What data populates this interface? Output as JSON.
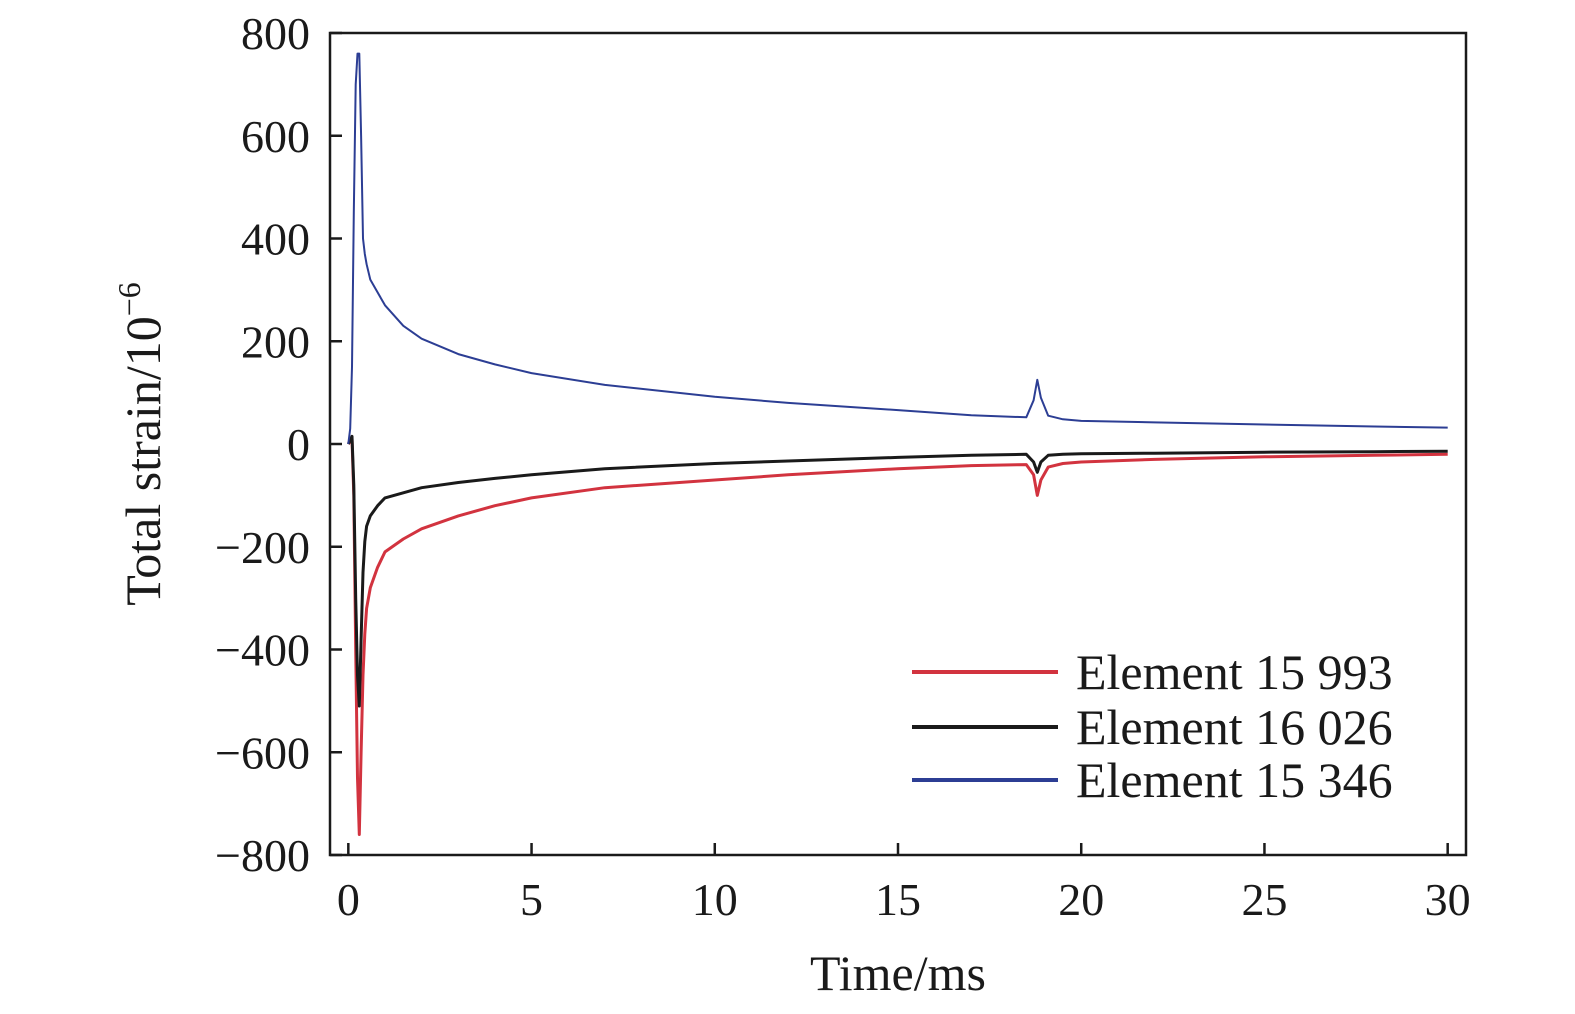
{
  "chart_data": {
    "type": "line",
    "title": "",
    "xlabel": "Time/ms",
    "ylabel_text": "Total strain/10",
    "ylabel_exponent": "−6",
    "xlim": [
      -0.5,
      30.5
    ],
    "ylim": [
      -800,
      800
    ],
    "x_ticks": [
      0,
      5,
      10,
      15,
      20,
      25,
      30
    ],
    "y_ticks": [
      800,
      600,
      400,
      200,
      0,
      -200,
      -400,
      -600,
      -800
    ],
    "x_tick_labels": [
      "0",
      "5",
      "10",
      "15",
      "20",
      "25",
      "30"
    ],
    "y_tick_labels": [
      "800",
      "600",
      "400",
      "200",
      "0",
      "−200",
      "−400",
      "−600",
      "−800"
    ],
    "grid": false,
    "legend_position": "bottom-right",
    "series": [
      {
        "name": "Element 15 993",
        "color": "#d2333f",
        "x": [
          0.0,
          0.1,
          0.15,
          0.2,
          0.25,
          0.3,
          0.35,
          0.4,
          0.45,
          0.5,
          0.6,
          0.8,
          1.0,
          1.5,
          2.0,
          3.0,
          4.0,
          5.0,
          7.0,
          10.0,
          12.0,
          15.0,
          17.0,
          18.5,
          18.7,
          18.8,
          18.9,
          19.1,
          19.5,
          20.0,
          22.0,
          25.0,
          28.0,
          30.0
        ],
        "y": [
          0,
          10,
          -100,
          -400,
          -650,
          -760,
          -600,
          -450,
          -370,
          -320,
          -280,
          -240,
          -210,
          -185,
          -165,
          -140,
          -120,
          -105,
          -85,
          -70,
          -60,
          -48,
          -42,
          -40,
          -60,
          -100,
          -70,
          -45,
          -38,
          -35,
          -30,
          -25,
          -22,
          -20
        ]
      },
      {
        "name": "Element 16 026",
        "color": "#1a1a1a",
        "x": [
          0.0,
          0.1,
          0.15,
          0.2,
          0.25,
          0.3,
          0.35,
          0.4,
          0.45,
          0.5,
          0.6,
          0.8,
          1.0,
          1.5,
          2.0,
          3.0,
          4.0,
          5.0,
          7.0,
          10.0,
          12.0,
          15.0,
          17.0,
          18.5,
          18.7,
          18.8,
          18.9,
          19.1,
          19.5,
          20.0,
          22.0,
          25.0,
          28.0,
          30.0
        ],
        "y": [
          0,
          15,
          -80,
          -300,
          -450,
          -510,
          -380,
          -250,
          -190,
          -160,
          -140,
          -120,
          -105,
          -95,
          -85,
          -75,
          -67,
          -60,
          -48,
          -38,
          -33,
          -26,
          -22,
          -20,
          -35,
          -55,
          -35,
          -22,
          -20,
          -19,
          -18,
          -16,
          -15,
          -14
        ]
      },
      {
        "name": "Element 15 346",
        "color": "#2c3e94",
        "x": [
          0.0,
          0.05,
          0.1,
          0.15,
          0.2,
          0.25,
          0.3,
          0.35,
          0.4,
          0.45,
          0.5,
          0.6,
          0.8,
          1.0,
          1.5,
          2.0,
          3.0,
          4.0,
          5.0,
          7.0,
          10.0,
          12.0,
          15.0,
          17.0,
          18.5,
          18.7,
          18.8,
          18.9,
          19.1,
          19.5,
          20.0,
          22.0,
          25.0,
          28.0,
          30.0
        ],
        "y": [
          0,
          30,
          150,
          450,
          700,
          760,
          760,
          600,
          400,
          370,
          350,
          320,
          295,
          270,
          230,
          205,
          175,
          155,
          138,
          115,
          92,
          80,
          66,
          56,
          52,
          85,
          125,
          90,
          55,
          48,
          45,
          42,
          38,
          34,
          32
        ]
      }
    ]
  }
}
